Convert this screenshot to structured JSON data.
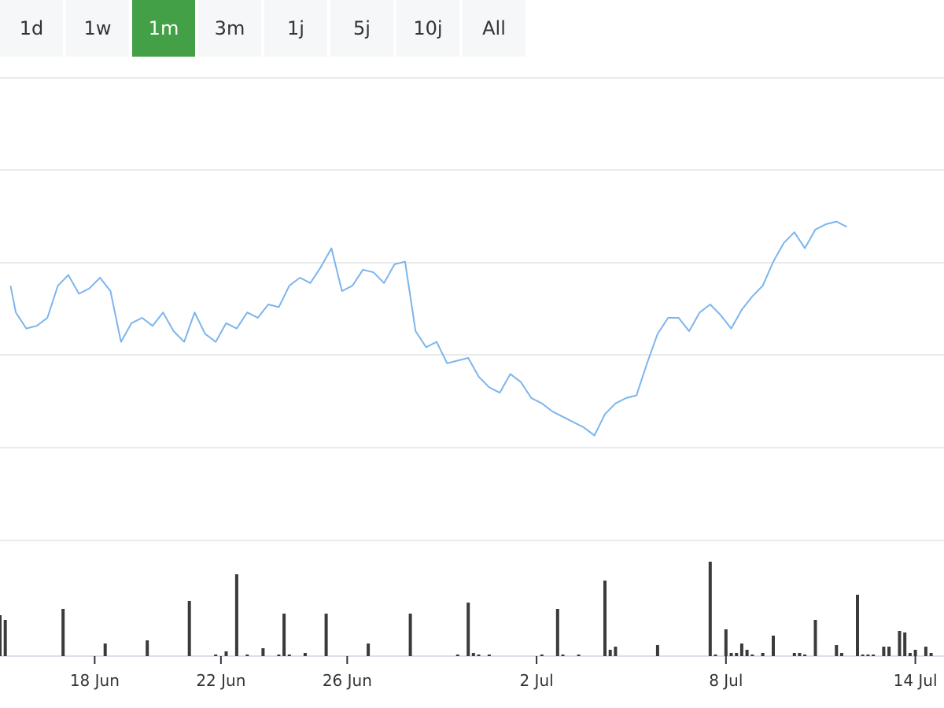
{
  "range_selector": {
    "buttons": [
      "1d",
      "1w",
      "1m",
      "3m",
      "1j",
      "5j",
      "10j",
      "All"
    ],
    "active": "1m"
  },
  "colors": {
    "line": "#7cb5ec",
    "volume": "#3a3a3a",
    "active_button": "#43a047",
    "button_bg": "#f6f7f8",
    "grid": "#e3e3e3"
  },
  "chart_data": [
    {
      "type": "line",
      "title": "",
      "grid": true,
      "x_axis": {
        "type": "date",
        "ticks": [
          {
            "date": "2024-06-18",
            "label": "18 Jun"
          },
          {
            "date": "2024-06-22",
            "label": "22 Jun"
          },
          {
            "date": "2024-06-26",
            "label": "26 Jun"
          },
          {
            "date": "2024-07-02",
            "label": "2 Jul"
          },
          {
            "date": "2024-07-08",
            "label": "8 Jul"
          },
          {
            "date": "2024-07-14",
            "label": "14 Jul"
          }
        ]
      },
      "ylim": [
        0,
        100
      ],
      "series": [
        {
          "values": [
            [
              "2024-06-15T08:00",
              57
            ],
            [
              "2024-06-15T12:00",
              47
            ],
            [
              "2024-06-15T20:00",
              41
            ],
            [
              "2024-06-16T04:00",
              42
            ],
            [
              "2024-06-16T12:00",
              45
            ],
            [
              "2024-06-16T20:00",
              57
            ],
            [
              "2024-06-17T04:00",
              61
            ],
            [
              "2024-06-17T12:00",
              54
            ],
            [
              "2024-06-17T20:00",
              56
            ],
            [
              "2024-06-18T04:00",
              60
            ],
            [
              "2024-06-18T12:00",
              55
            ],
            [
              "2024-06-18T20:00",
              36
            ],
            [
              "2024-06-19T04:00",
              43
            ],
            [
              "2024-06-19T12:00",
              45
            ],
            [
              "2024-06-19T20:00",
              42
            ],
            [
              "2024-06-20T04:00",
              47
            ],
            [
              "2024-06-20T12:00",
              40
            ],
            [
              "2024-06-20T20:00",
              36
            ],
            [
              "2024-06-21T04:00",
              47
            ],
            [
              "2024-06-21T12:00",
              39
            ],
            [
              "2024-06-21T20:00",
              36
            ],
            [
              "2024-06-22T04:00",
              43
            ],
            [
              "2024-06-22T12:00",
              41
            ],
            [
              "2024-06-22T20:00",
              47
            ],
            [
              "2024-06-23T04:00",
              45
            ],
            [
              "2024-06-23T12:00",
              50
            ],
            [
              "2024-06-23T20:00",
              49
            ],
            [
              "2024-06-24T04:00",
              57
            ],
            [
              "2024-06-24T12:00",
              60
            ],
            [
              "2024-06-24T20:00",
              58
            ],
            [
              "2024-06-25T04:00",
              64
            ],
            [
              "2024-06-25T12:00",
              71
            ],
            [
              "2024-06-25T20:00",
              55
            ],
            [
              "2024-06-26T04:00",
              57
            ],
            [
              "2024-06-26T12:00",
              63
            ],
            [
              "2024-06-26T20:00",
              62
            ],
            [
              "2024-06-27T04:00",
              58
            ],
            [
              "2024-06-27T12:00",
              65
            ],
            [
              "2024-06-27T20:00",
              66
            ],
            [
              "2024-06-28T04:00",
              40
            ],
            [
              "2024-06-28T12:00",
              34
            ],
            [
              "2024-06-28T20:00",
              36
            ],
            [
              "2024-06-29T04:00",
              28
            ],
            [
              "2024-06-29T12:00",
              29
            ],
            [
              "2024-06-29T20:00",
              30
            ],
            [
              "2024-06-30T04:00",
              23
            ],
            [
              "2024-06-30T12:00",
              19
            ],
            [
              "2024-06-30T20:00",
              17
            ],
            [
              "2024-07-01T04:00",
              24
            ],
            [
              "2024-07-01T12:00",
              21
            ],
            [
              "2024-07-01T20:00",
              15
            ],
            [
              "2024-07-02T04:00",
              13
            ],
            [
              "2024-07-02T12:00",
              10
            ],
            [
              "2024-07-02T20:00",
              8
            ],
            [
              "2024-07-03T04:00",
              6
            ],
            [
              "2024-07-03T12:00",
              4
            ],
            [
              "2024-07-03T20:00",
              1
            ],
            [
              "2024-07-04T04:00",
              9
            ],
            [
              "2024-07-04T12:00",
              13
            ],
            [
              "2024-07-04T20:00",
              15
            ],
            [
              "2024-07-05T04:00",
              16
            ],
            [
              "2024-07-05T12:00",
              28
            ],
            [
              "2024-07-05T20:00",
              39
            ],
            [
              "2024-07-06T04:00",
              45
            ],
            [
              "2024-07-06T12:00",
              45
            ],
            [
              "2024-07-06T20:00",
              40
            ],
            [
              "2024-07-07T04:00",
              47
            ],
            [
              "2024-07-07T12:00",
              50
            ],
            [
              "2024-07-07T20:00",
              46
            ],
            [
              "2024-07-08T04:00",
              41
            ],
            [
              "2024-07-08T12:00",
              48
            ],
            [
              "2024-07-08T20:00",
              53
            ],
            [
              "2024-07-09T04:00",
              57
            ],
            [
              "2024-07-09T12:00",
              66
            ],
            [
              "2024-07-09T20:00",
              73
            ],
            [
              "2024-07-10T04:00",
              77
            ],
            [
              "2024-07-10T12:00",
              71
            ],
            [
              "2024-07-10T20:00",
              78
            ],
            [
              "2024-07-11T04:00",
              80
            ],
            [
              "2024-07-11T12:00",
              81
            ],
            [
              "2024-07-11T20:00",
              79
            ]
          ]
        }
      ]
    },
    {
      "type": "bar",
      "title": "",
      "x_axis": {
        "type": "date"
      },
      "ylim": [
        0,
        60
      ],
      "series": [
        {
          "values": [
            [
              "2024-06-15T00:00",
              26
            ],
            [
              "2024-06-15T04:00",
              23
            ],
            [
              "2024-06-17T00:00",
              30
            ],
            [
              "2024-06-18T08:00",
              8
            ],
            [
              "2024-06-19T16:00",
              10
            ],
            [
              "2024-06-21T00:00",
              35
            ],
            [
              "2024-06-21T20:00",
              1
            ],
            [
              "2024-06-22T04:00",
              3
            ],
            [
              "2024-06-22T12:00",
              52
            ],
            [
              "2024-06-22T20:00",
              1
            ],
            [
              "2024-06-23T08:00",
              5
            ],
            [
              "2024-06-23T20:00",
              1
            ],
            [
              "2024-06-24T00:00",
              27
            ],
            [
              "2024-06-24T04:00",
              1
            ],
            [
              "2024-06-24T16:00",
              2
            ],
            [
              "2024-06-25T08:00",
              27
            ],
            [
              "2024-06-26T16:00",
              8
            ],
            [
              "2024-06-28T00:00",
              27
            ],
            [
              "2024-06-29T12:00",
              1
            ],
            [
              "2024-06-29T20:00",
              34
            ],
            [
              "2024-06-30T00:00",
              2
            ],
            [
              "2024-06-30T04:00",
              1
            ],
            [
              "2024-06-30T12:00",
              1
            ],
            [
              "2024-07-02T04:00",
              1
            ],
            [
              "2024-07-02T16:00",
              30
            ],
            [
              "2024-07-02T20:00",
              1
            ],
            [
              "2024-07-03T08:00",
              1
            ],
            [
              "2024-07-04T04:00",
              48
            ],
            [
              "2024-07-04T08:00",
              4
            ],
            [
              "2024-07-04T12:00",
              6
            ],
            [
              "2024-07-05T20:00",
              7
            ],
            [
              "2024-07-07T12:00",
              60
            ],
            [
              "2024-07-07T16:00",
              1
            ],
            [
              "2024-07-08T00:00",
              17
            ],
            [
              "2024-07-08T04:00",
              2
            ],
            [
              "2024-07-08T08:00",
              2
            ],
            [
              "2024-07-08T12:00",
              8
            ],
            [
              "2024-07-08T16:00",
              4
            ],
            [
              "2024-07-08T20:00",
              1
            ],
            [
              "2024-07-09T04:00",
              2
            ],
            [
              "2024-07-09T12:00",
              13
            ],
            [
              "2024-07-10T04:00",
              2
            ],
            [
              "2024-07-10T08:00",
              2
            ],
            [
              "2024-07-10T12:00",
              1
            ],
            [
              "2024-07-10T20:00",
              23
            ],
            [
              "2024-07-11T12:00",
              7
            ],
            [
              "2024-07-11T16:00",
              2
            ],
            [
              "2024-07-12T04:00",
              39
            ],
            [
              "2024-07-12T08:00",
              1
            ],
            [
              "2024-07-12T12:00",
              1
            ],
            [
              "2024-07-12T16:00",
              1
            ],
            [
              "2024-07-13T00:00",
              6
            ],
            [
              "2024-07-13T04:00",
              6
            ],
            [
              "2024-07-13T12:00",
              16
            ],
            [
              "2024-07-13T16:00",
              15
            ],
            [
              "2024-07-13T20:00",
              2
            ],
            [
              "2024-07-14T00:00",
              4
            ],
            [
              "2024-07-14T08:00",
              6
            ],
            [
              "2024-07-14T12:00",
              2
            ]
          ]
        }
      ]
    }
  ]
}
